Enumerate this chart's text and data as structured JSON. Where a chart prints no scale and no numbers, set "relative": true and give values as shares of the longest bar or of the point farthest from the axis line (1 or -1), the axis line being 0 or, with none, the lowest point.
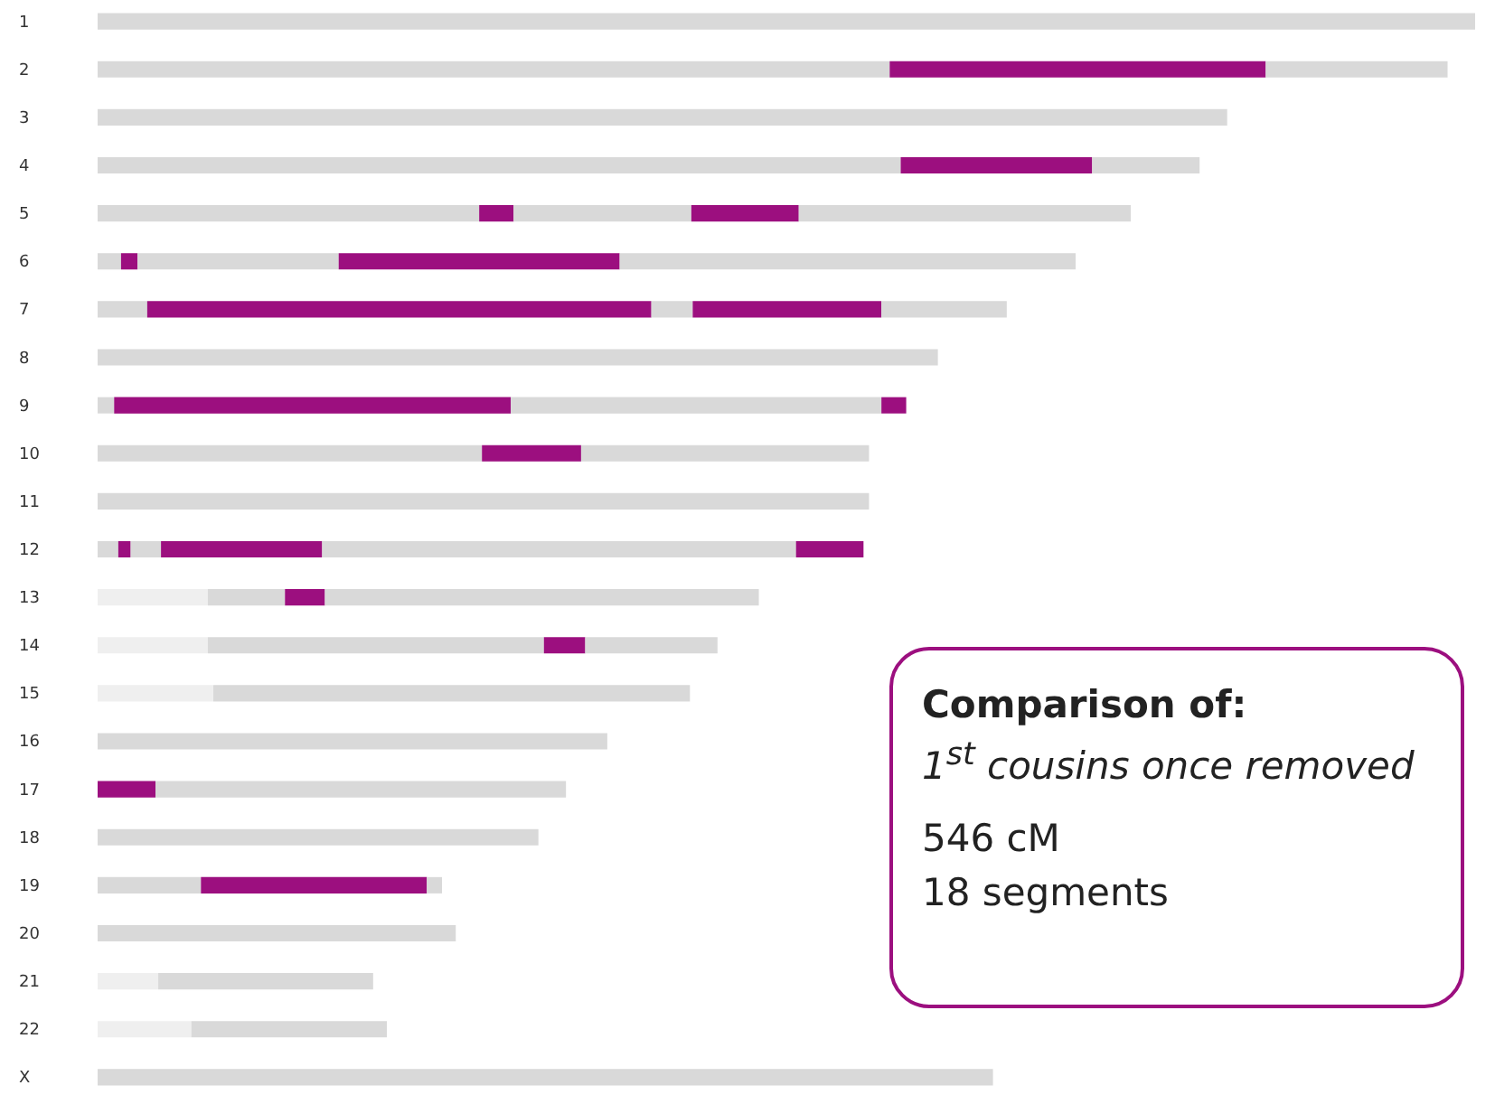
{
  "chart_data": {
    "type": "bar",
    "orientation": "horizontal",
    "relative": true,
    "stacked": true,
    "categories": [
      "1",
      "2",
      "3",
      "4",
      "5",
      "6",
      "7",
      "8",
      "9",
      "10",
      "11",
      "12",
      "13",
      "14",
      "15",
      "16",
      "17",
      "18",
      "19",
      "20",
      "21",
      "22",
      "X"
    ],
    "series": [
      {
        "color": "#efefef",
        "values": [
          null,
          null,
          null,
          null,
          null,
          null,
          null,
          null,
          null,
          null,
          null,
          null,
          0.08,
          0.08,
          0.084,
          null,
          null,
          null,
          null,
          null,
          0.044,
          0.068,
          null
        ]
      },
      {
        "color": "#d9d9d9",
        "values": [
          1.0,
          0.575,
          0.82,
          0.583,
          0.277,
          0.017,
          0.036,
          0.61,
          0.012,
          0.279,
          0.56,
          0.015,
          0.056,
          0.244,
          0.346,
          0.37,
          null,
          0.32,
          0.075,
          0.26,
          0.156,
          0.142,
          0.65
        ]
      },
      {
        "color": "#9c0f7f",
        "values": [
          null,
          0.273,
          null,
          0.139,
          0.025,
          0.012,
          0.366,
          null,
          0.288,
          0.072,
          null,
          0.009,
          0.029,
          0.03,
          null,
          null,
          0.042,
          null,
          0.164,
          null,
          null,
          null,
          null
        ]
      },
      {
        "color": "#d9d9d9",
        "values": [
          null,
          0.132,
          null,
          0.078,
          0.129,
          0.146,
          0.03,
          null,
          0.269,
          0.209,
          null,
          0.022,
          0.315,
          0.096,
          null,
          null,
          0.298,
          null,
          0.011,
          null,
          null,
          null,
          null
        ]
      },
      {
        "color": "#9c0f7f",
        "values": [
          null,
          null,
          null,
          null,
          0.078,
          0.204,
          0.137,
          null,
          0.018,
          null,
          null,
          0.117,
          null,
          null,
          null,
          null,
          null,
          null,
          null,
          null,
          null,
          null,
          null
        ]
      },
      {
        "color": "#d9d9d9",
        "values": [
          null,
          null,
          null,
          null,
          0.241,
          0.331,
          0.091,
          null,
          null,
          null,
          null,
          0.344,
          null,
          null,
          null,
          null,
          null,
          null,
          null,
          null,
          null,
          null,
          null
        ]
      },
      {
        "color": "#9c0f7f",
        "values": [
          null,
          null,
          null,
          null,
          null,
          null,
          null,
          null,
          null,
          null,
          null,
          0.049,
          null,
          null,
          null,
          null,
          null,
          null,
          null,
          null,
          null,
          null,
          null
        ]
      }
    ],
    "annotations": [
      "Comparison of:",
      "1$^{st}$ cousins once removed",
      "546 cM",
      "18 segments"
    ]
  }
}
